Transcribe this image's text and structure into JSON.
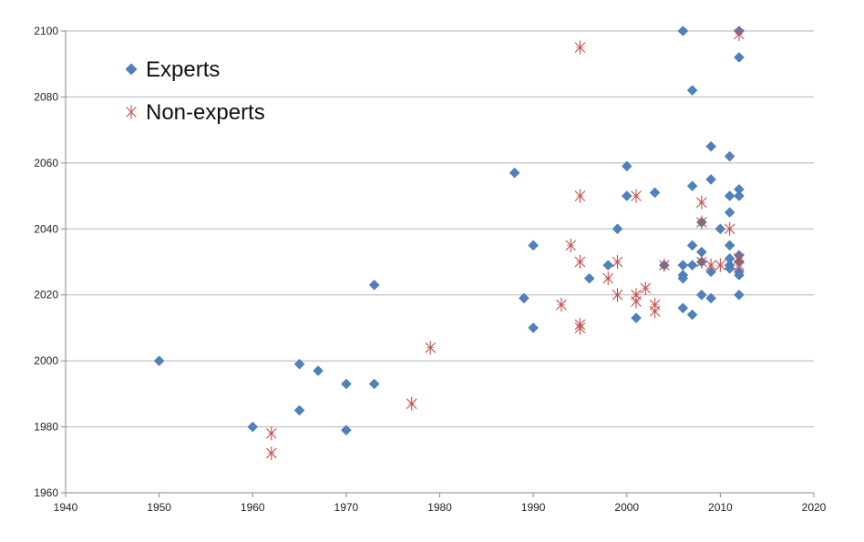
{
  "colors": {
    "experts": "#4f81bd",
    "non_experts": "#c0504d",
    "grid": "#b5b5b5",
    "axis": "#8a8a8a"
  },
  "chart_data": {
    "type": "scatter",
    "title": "",
    "xlabel": "",
    "ylabel": "",
    "xlim": [
      1940,
      2020
    ],
    "ylim": [
      1960,
      2100
    ],
    "x_ticks": [
      1940,
      1950,
      1960,
      1970,
      1980,
      1990,
      2000,
      2010,
      2020
    ],
    "y_ticks": [
      1960,
      1980,
      2000,
      2020,
      2040,
      2060,
      2080,
      2100
    ],
    "grid": "horizontal",
    "legend_position": "top-left",
    "series": [
      {
        "name": "Experts",
        "marker": "diamond",
        "color": "#4f81bd",
        "points": [
          [
            1950,
            2000
          ],
          [
            1960,
            1980
          ],
          [
            1965,
            1999
          ],
          [
            1965,
            1985
          ],
          [
            1967,
            1997
          ],
          [
            1970,
            1993
          ],
          [
            1970,
            1979
          ],
          [
            1973,
            1993
          ],
          [
            1973,
            2023
          ],
          [
            1988,
            2057
          ],
          [
            1989,
            2019
          ],
          [
            1990,
            2035
          ],
          [
            1990,
            2010
          ],
          [
            1996,
            2025
          ],
          [
            1998,
            2029
          ],
          [
            1999,
            2040
          ],
          [
            2000,
            2059
          ],
          [
            2000,
            2050
          ],
          [
            2001,
            2013
          ],
          [
            2003,
            2051
          ],
          [
            2004,
            2029
          ],
          [
            2006,
            2100
          ],
          [
            2006,
            2029
          ],
          [
            2006,
            2026
          ],
          [
            2006,
            2025
          ],
          [
            2006,
            2016
          ],
          [
            2007,
            2082
          ],
          [
            2007,
            2053
          ],
          [
            2007,
            2035
          ],
          [
            2007,
            2029
          ],
          [
            2007,
            2014
          ],
          [
            2008,
            2042
          ],
          [
            2008,
            2033
          ],
          [
            2008,
            2030
          ],
          [
            2008,
            2020
          ],
          [
            2009,
            2065
          ],
          [
            2009,
            2055
          ],
          [
            2009,
            2027
          ],
          [
            2009,
            2019
          ],
          [
            2010,
            2040
          ],
          [
            2011,
            2062
          ],
          [
            2011,
            2050
          ],
          [
            2011,
            2045
          ],
          [
            2011,
            2035
          ],
          [
            2011,
            2031
          ],
          [
            2011,
            2029
          ],
          [
            2011,
            2028
          ],
          [
            2012,
            2100
          ],
          [
            2012,
            2092
          ],
          [
            2012,
            2052
          ],
          [
            2012,
            2050
          ],
          [
            2012,
            2032
          ],
          [
            2012,
            2030
          ],
          [
            2012,
            2027
          ],
          [
            2012,
            2026
          ],
          [
            2012,
            2020
          ]
        ]
      },
      {
        "name": "Non-experts",
        "marker": "star",
        "color": "#c0504d",
        "points": [
          [
            1962,
            1978
          ],
          [
            1962,
            1972
          ],
          [
            1977,
            1987
          ],
          [
            1979,
            2004
          ],
          [
            1993,
            2017
          ],
          [
            1994,
            2035
          ],
          [
            1995,
            2095
          ],
          [
            1995,
            2050
          ],
          [
            1995,
            2030
          ],
          [
            1995,
            2011
          ],
          [
            1995,
            2010
          ],
          [
            1998,
            2025
          ],
          [
            1999,
            2030
          ],
          [
            1999,
            2020
          ],
          [
            2001,
            2050
          ],
          [
            2001,
            2020
          ],
          [
            2001,
            2018
          ],
          [
            2002,
            2022
          ],
          [
            2003,
            2017
          ],
          [
            2003,
            2015
          ],
          [
            2004,
            2029
          ],
          [
            2008,
            2048
          ],
          [
            2008,
            2042
          ],
          [
            2008,
            2030
          ],
          [
            2009,
            2029
          ],
          [
            2010,
            2029
          ],
          [
            2011,
            2040
          ],
          [
            2012,
            2099
          ],
          [
            2012,
            2031
          ],
          [
            2012,
            2029
          ]
        ]
      }
    ]
  }
}
